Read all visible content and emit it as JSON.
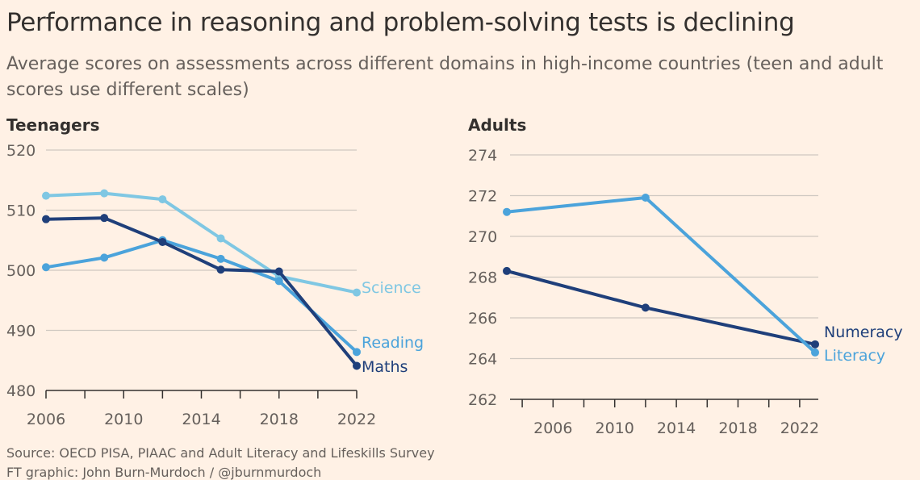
{
  "title": "Performance in reasoning and problem-solving tests is declining",
  "subtitle": "Average scores on assessments across different domains in high-income countries (teen and adult scores use different scales)",
  "source": "Source: OECD PISA, PIAAC and Adult Literacy and Lifeskills Survey",
  "byline": "FT graphic: John Burn-Murdoch / @jburnmurdoch",
  "colors": {
    "background": "#FFF1E5",
    "maths": "#1F3F7A",
    "numeracy": "#1F3F7A",
    "reading": "#4BA3DB",
    "literacy": "#4BA3DB",
    "science": "#7FC7E3",
    "grid": "#CFC8C1"
  },
  "chart_data": [
    {
      "type": "line",
      "panel_title": "Teenagers",
      "xlim": [
        2006,
        2022
      ],
      "ylim": [
        480,
        520
      ],
      "x_ticks": [
        2006,
        2010,
        2014,
        2018,
        2022
      ],
      "x_minor_ticks": [
        2008,
        2012,
        2016,
        2020
      ],
      "y_ticks": [
        480,
        490,
        500,
        510,
        520
      ],
      "grid": true,
      "series": [
        {
          "name": "Science",
          "color": "#7FC7E3",
          "x": [
            2006,
            2009,
            2012,
            2015,
            2018,
            2022
          ],
          "y": [
            512.4,
            512.8,
            511.8,
            505.3,
            499.0,
            496.3
          ]
        },
        {
          "name": "Reading",
          "color": "#4BA3DB",
          "x": [
            2006,
            2009,
            2012,
            2015,
            2018,
            2022
          ],
          "y": [
            500.5,
            502.1,
            505.0,
            501.9,
            498.2,
            486.4
          ]
        },
        {
          "name": "Maths",
          "color": "#1F3F7A",
          "x": [
            2006,
            2009,
            2012,
            2015,
            2018,
            2022
          ],
          "y": [
            508.5,
            508.7,
            504.7,
            500.1,
            499.8,
            484.1
          ]
        }
      ]
    },
    {
      "type": "line",
      "panel_title": "Adults",
      "xlim": [
        2003,
        2023
      ],
      "ylim": [
        262,
        274
      ],
      "x_ticks": [
        2006,
        2010,
        2014,
        2018,
        2022
      ],
      "x_minor_ticks": [
        2004,
        2008,
        2012,
        2016,
        2020
      ],
      "y_ticks": [
        262,
        264,
        266,
        268,
        270,
        272,
        274
      ],
      "grid": true,
      "series": [
        {
          "name": "Numeracy",
          "color": "#1F3F7A",
          "x": [
            2003,
            2012,
            2023
          ],
          "y": [
            268.3,
            266.5,
            264.7
          ]
        },
        {
          "name": "Literacy",
          "color": "#4BA3DB",
          "x": [
            2003,
            2012,
            2023
          ],
          "y": [
            271.2,
            271.9,
            264.3
          ]
        }
      ]
    }
  ]
}
